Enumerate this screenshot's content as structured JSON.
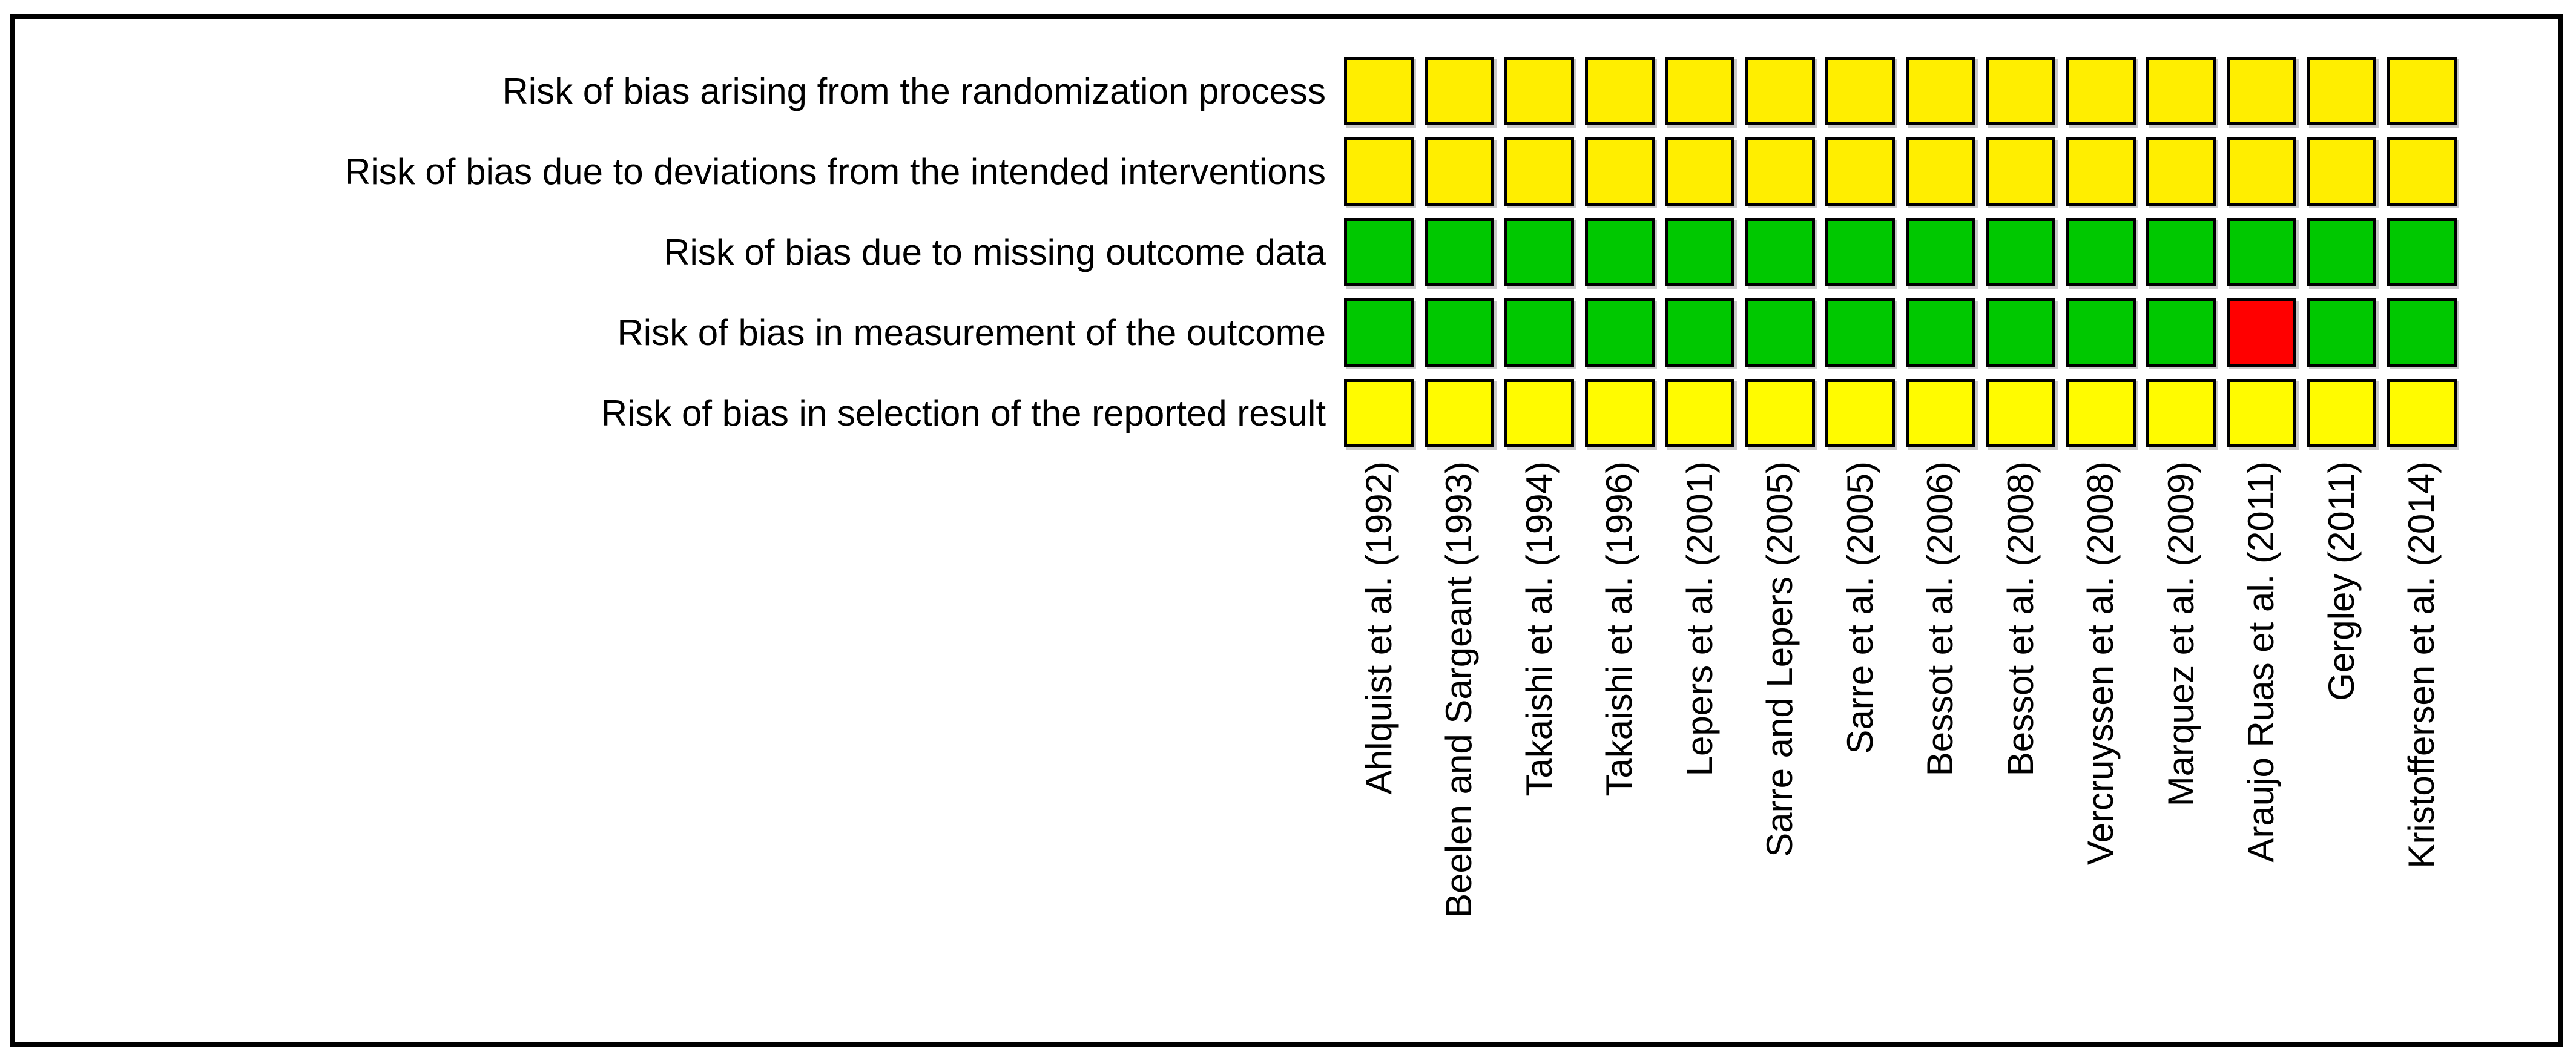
{
  "chart_data": {
    "type": "heatmap",
    "title": "",
    "legend_position": "none",
    "grid_shape": "5 rows x 14 columns",
    "rows": [
      "Risk of bias arising from the randomization process",
      "Risk of bias due to deviations from the intended interventions",
      "Risk of bias due to missing outcome data",
      "Risk of bias in measurement of the outcome",
      "Risk of bias in selection of the reported result"
    ],
    "columns": [
      "Ahlquist et al. (1992)",
      "Beelen and Sargeant (1993)",
      "Takaishi et al. (1994)",
      "Takaishi et al. (1996)",
      "Lepers et al. (2001)",
      "Sarre and Lepers (2005)",
      "Sarre et al. (2005)",
      "Bessot et al. (2006)",
      "Bessot et al. (2008)",
      "Vercruyssen et al. (2008)",
      "Marquez et al. (2009)",
      "Araujo Ruas et al. (2011)",
      "Gergley (2011)",
      "Kristoffersen et al. (2014)"
    ],
    "values": [
      [
        "some_concerns",
        "some_concerns",
        "some_concerns",
        "some_concerns",
        "some_concerns",
        "some_concerns",
        "some_concerns",
        "some_concerns",
        "some_concerns",
        "some_concerns",
        "some_concerns",
        "some_concerns",
        "some_concerns",
        "some_concerns"
      ],
      [
        "some_concerns",
        "some_concerns",
        "some_concerns",
        "some_concerns",
        "some_concerns",
        "some_concerns",
        "some_concerns",
        "some_concerns",
        "some_concerns",
        "some_concerns",
        "some_concerns",
        "some_concerns",
        "some_concerns",
        "some_concerns"
      ],
      [
        "low",
        "low",
        "low",
        "low",
        "low",
        "low",
        "low",
        "low",
        "low",
        "low",
        "low",
        "low",
        "low",
        "low"
      ],
      [
        "low",
        "low",
        "low",
        "low",
        "low",
        "low",
        "low",
        "low",
        "low",
        "low",
        "low",
        "high",
        "low",
        "low"
      ],
      [
        "some_concerns_bright",
        "some_concerns_bright",
        "some_concerns_bright",
        "some_concerns_bright",
        "some_concerns_bright",
        "some_concerns_bright",
        "some_concerns_bright",
        "some_concerns_bright",
        "some_concerns_bright",
        "some_concerns_bright",
        "some_concerns_bright",
        "some_concerns_bright",
        "some_concerns_bright",
        "some_concerns_bright"
      ]
    ],
    "colors": {
      "some_concerns": "#FFEE00",
      "some_concerns_bright": "#FFFB00",
      "low": "#00C800",
      "high": "#FF0000",
      "cell_border": "#000000",
      "frame_border": "#000000",
      "background": "#FFFFFF"
    }
  }
}
